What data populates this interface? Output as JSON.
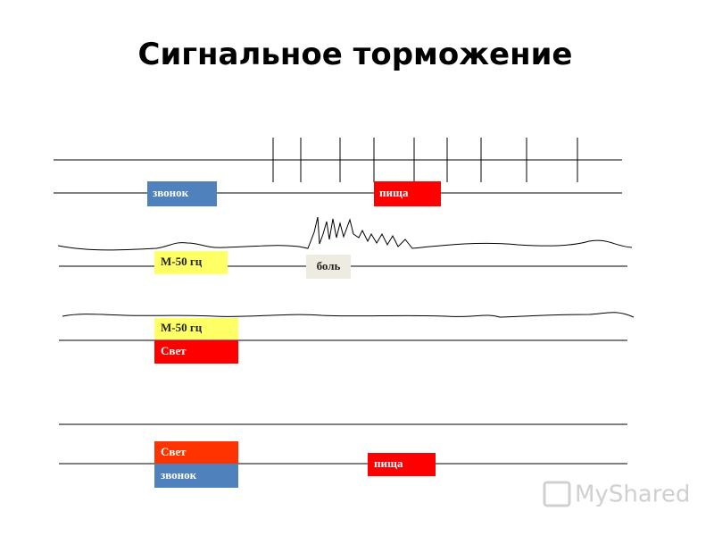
{
  "title": "Сигнальное торможение",
  "labels": {
    "bell_1": "звонок",
    "food_1": "пища",
    "m50_1": "М-50 гц",
    "pain": "боль",
    "m50_2": "М-50 гц",
    "light_1": "Свет",
    "light_2": "Свет",
    "bell_2": "звонок",
    "food_2": "пища"
  },
  "watermark": "MyShared"
}
